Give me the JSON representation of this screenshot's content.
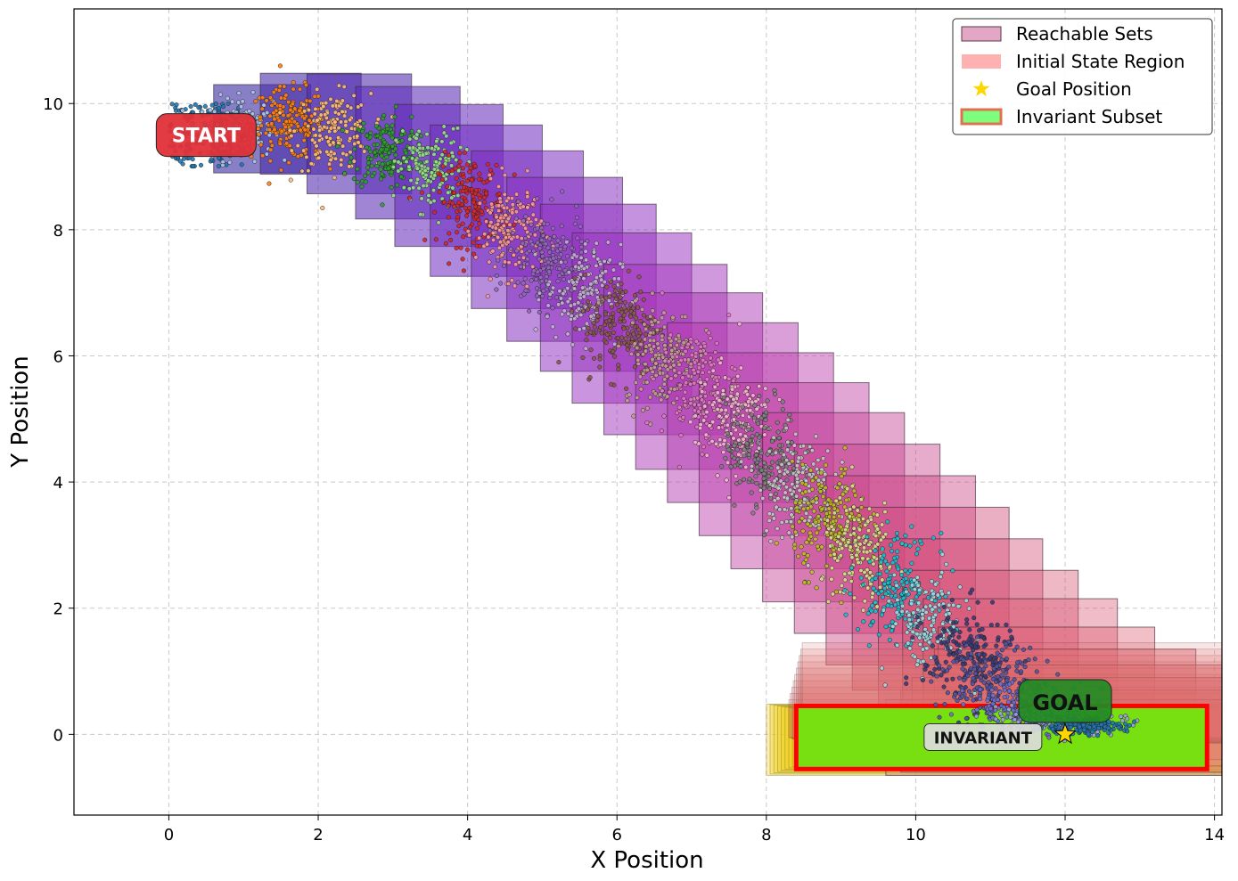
{
  "chart_data": {
    "type": "scatter",
    "xlabel": "X Position",
    "ylabel": "Y Position",
    "xlim": [
      -1.27,
      14.1
    ],
    "ylim": [
      -1.28,
      11.5
    ],
    "xticks": [
      0,
      2,
      4,
      6,
      8,
      10,
      12,
      14
    ],
    "yticks": [
      0,
      2,
      4,
      6,
      8,
      10
    ],
    "grid": true,
    "legend_position": "top-right",
    "legend": [
      {
        "label": "Reachable Sets",
        "kind": "patch",
        "color": "#e3a6c4"
      },
      {
        "label": "Initial State Region",
        "kind": "patch",
        "color": "#ffb0b0"
      },
      {
        "label": "Goal Position",
        "kind": "star",
        "color": "#ffd700"
      },
      {
        "label": "Invariant Subset",
        "kind": "patch-outline",
        "color": "#7dff7d",
        "edge": "#e07050"
      }
    ],
    "annotations": [
      {
        "text": "START",
        "x": 0.5,
        "y": 9.5,
        "color": "#e03038"
      },
      {
        "text": "GOAL",
        "x": 12.0,
        "y": 0.5,
        "color": "#228b22"
      },
      {
        "text": "INVARIANT",
        "x": 10.9,
        "y": -0.03,
        "color": "#dcdcdc"
      }
    ],
    "goal": {
      "x": 12.0,
      "y": 0.0
    },
    "initial_region": {
      "x": [
        0,
        1.0
      ],
      "y": [
        9.0,
        10.0
      ]
    },
    "invariant_subset": {
      "x": [
        8.4,
        13.9
      ],
      "y": [
        -0.55,
        0.45
      ],
      "fill": "#78e010",
      "edge": "#ff0000"
    },
    "reachable_sets": [
      {
        "cx": 1.25,
        "cy": 9.6,
        "w": 1.3,
        "h": 1.4
      },
      {
        "cx": 1.9,
        "cy": 9.68,
        "w": 1.35,
        "h": 1.6
      },
      {
        "cx": 2.55,
        "cy": 9.52,
        "w": 1.4,
        "h": 1.9
      },
      {
        "cx": 3.2,
        "cy": 9.22,
        "w": 1.4,
        "h": 2.1
      },
      {
        "cx": 3.75,
        "cy": 8.86,
        "w": 1.45,
        "h": 2.25
      },
      {
        "cx": 4.25,
        "cy": 8.46,
        "w": 1.5,
        "h": 2.4
      },
      {
        "cx": 4.8,
        "cy": 8.0,
        "w": 1.5,
        "h": 2.5
      },
      {
        "cx": 5.3,
        "cy": 7.53,
        "w": 1.55,
        "h": 2.6
      },
      {
        "cx": 5.75,
        "cy": 7.08,
        "w": 1.55,
        "h": 2.65
      },
      {
        "cx": 6.2,
        "cy": 6.6,
        "w": 1.6,
        "h": 2.7
      },
      {
        "cx": 6.65,
        "cy": 6.1,
        "w": 1.65,
        "h": 2.7
      },
      {
        "cx": 7.1,
        "cy": 5.6,
        "w": 1.7,
        "h": 2.8
      },
      {
        "cx": 7.55,
        "cy": 5.1,
        "w": 1.75,
        "h": 2.85
      },
      {
        "cx": 8.0,
        "cy": 4.6,
        "w": 1.8,
        "h": 2.9
      },
      {
        "cx": 8.45,
        "cy": 4.1,
        "w": 1.85,
        "h": 2.95
      },
      {
        "cx": 8.9,
        "cy": 3.6,
        "w": 1.9,
        "h": 3.0
      },
      {
        "cx": 9.35,
        "cy": 3.1,
        "w": 1.95,
        "h": 3.0
      },
      {
        "cx": 9.8,
        "cy": 2.6,
        "w": 2.0,
        "h": 3.0
      },
      {
        "cx": 10.2,
        "cy": 2.15,
        "w": 2.1,
        "h": 2.9
      },
      {
        "cx": 10.6,
        "cy": 1.75,
        "w": 2.2,
        "h": 2.7
      },
      {
        "cx": 11.0,
        "cy": 1.35,
        "w": 2.35,
        "h": 2.5
      },
      {
        "cx": 11.4,
        "cy": 1.05,
        "w": 2.6,
        "h": 2.2
      },
      {
        "cx": 11.75,
        "cy": 0.75,
        "w": 2.9,
        "h": 1.9
      },
      {
        "cx": 12.0,
        "cy": 0.5,
        "w": 3.5,
        "h": 1.7
      },
      {
        "cx": 12.1,
        "cy": 0.35,
        "w": 4.0,
        "h": 1.5
      },
      {
        "cx": 12.15,
        "cy": 0.2,
        "w": 4.4,
        "h": 1.4
      },
      {
        "cx": 12.2,
        "cy": 0.05,
        "w": 4.8,
        "h": 1.3
      },
      {
        "cx": 12.2,
        "cy": -0.05,
        "w": 5.2,
        "h": 1.2
      }
    ],
    "sample_clusters": [
      {
        "cx": 0.5,
        "cy": 9.5,
        "sx": 0.5,
        "sy": 0.5,
        "color": "#1f77b4",
        "uniform": true
      },
      {
        "cx": 0.95,
        "cy": 9.6,
        "sx": 0.22,
        "sy": 0.25,
        "color": "#aec7e8"
      },
      {
        "cx": 1.6,
        "cy": 9.68,
        "sx": 0.25,
        "sy": 0.28,
        "color": "#ff7f0e"
      },
      {
        "cx": 2.2,
        "cy": 9.55,
        "sx": 0.25,
        "sy": 0.3,
        "color": "#ffbb78"
      },
      {
        "cx": 2.9,
        "cy": 9.25,
        "sx": 0.22,
        "sy": 0.3,
        "color": "#2ca02c"
      },
      {
        "cx": 3.5,
        "cy": 8.95,
        "sx": 0.22,
        "sy": 0.32,
        "color": "#98df8a"
      },
      {
        "cx": 4.05,
        "cy": 8.45,
        "sx": 0.22,
        "sy": 0.35,
        "color": "#d62728"
      },
      {
        "cx": 4.55,
        "cy": 8.0,
        "sx": 0.22,
        "sy": 0.36,
        "color": "#ff9896"
      },
      {
        "cx": 5.05,
        "cy": 7.5,
        "sx": 0.25,
        "sy": 0.38,
        "color": "#9467bd"
      },
      {
        "cx": 5.55,
        "cy": 7.0,
        "sx": 0.25,
        "sy": 0.38,
        "color": "#c5b0d5"
      },
      {
        "cx": 6.05,
        "cy": 6.5,
        "sx": 0.25,
        "sy": 0.4,
        "color": "#8c564b"
      },
      {
        "cx": 6.6,
        "cy": 6.0,
        "sx": 0.25,
        "sy": 0.4,
        "color": "#c49c94"
      },
      {
        "cx": 7.1,
        "cy": 5.5,
        "sx": 0.25,
        "sy": 0.42,
        "color": "#e377c2"
      },
      {
        "cx": 7.55,
        "cy": 5.0,
        "sx": 0.25,
        "sy": 0.42,
        "color": "#f7b6d2"
      },
      {
        "cx": 7.95,
        "cy": 4.45,
        "sx": 0.25,
        "sy": 0.42,
        "color": "#7f7f7f"
      },
      {
        "cx": 8.4,
        "cy": 3.95,
        "sx": 0.25,
        "sy": 0.42,
        "color": "#c7c7c7"
      },
      {
        "cx": 8.85,
        "cy": 3.4,
        "sx": 0.25,
        "sy": 0.42,
        "color": "#bcbd22"
      },
      {
        "cx": 9.25,
        "cy": 2.85,
        "sx": 0.25,
        "sy": 0.42,
        "color": "#dbdb8d"
      },
      {
        "cx": 9.75,
        "cy": 2.35,
        "sx": 0.25,
        "sy": 0.4,
        "color": "#17becf"
      },
      {
        "cx": 10.15,
        "cy": 1.8,
        "sx": 0.25,
        "sy": 0.38,
        "color": "#9edae5"
      },
      {
        "cx": 10.7,
        "cy": 1.25,
        "sx": 0.3,
        "sy": 0.38,
        "color": "#393b79"
      },
      {
        "cx": 11.0,
        "cy": 0.8,
        "sx": 0.35,
        "sy": 0.3,
        "color": "#5254a3"
      },
      {
        "cx": 11.5,
        "cy": 0.45,
        "sx": 0.4,
        "sy": 0.2,
        "color": "#6b6ecf"
      },
      {
        "cx": 11.9,
        "cy": 0.25,
        "sx": 0.45,
        "sy": 0.12,
        "color": "#9c9ede"
      },
      {
        "cx": 12.2,
        "cy": 0.12,
        "sx": 0.3,
        "sy": 0.06,
        "color": "#1f77b4"
      }
    ]
  }
}
